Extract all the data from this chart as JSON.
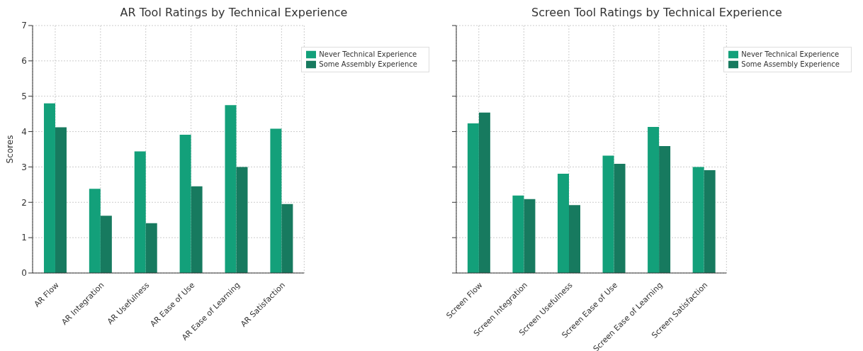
{
  "chart_data": [
    {
      "type": "bar",
      "title": "AR Tool Ratings by Technical Experience",
      "ylabel": "Scores",
      "categories": [
        "AR Flow",
        "AR Integration",
        "AR Usefulness",
        "AR Ease of Use",
        "AR Ease of Learning",
        "AR Satisfaction"
      ],
      "series": [
        {
          "name": "Never Technical Experience",
          "color": "#13a07a",
          "values": [
            4.8,
            2.38,
            3.44,
            3.91,
            4.75,
            4.08
          ]
        },
        {
          "name": "Some Assembly Experience",
          "color": "#177a5f",
          "values": [
            4.12,
            1.62,
            1.41,
            2.45,
            3.0,
            1.95
          ]
        }
      ],
      "ylim": [
        0,
        7
      ],
      "yticks": [
        0,
        1,
        2,
        3,
        4,
        5,
        6,
        7
      ],
      "grid": true,
      "legend": "top right"
    },
    {
      "type": "bar",
      "title": "Screen Tool Ratings by Technical Experience",
      "categories": [
        "Screen Flow",
        "Screen Integration",
        "Screen Usefulness",
        "Screen Ease of Use",
        "Screen Ease of Learning",
        "Screen Satisfaction"
      ],
      "series": [
        {
          "name": "Never Technical Experience",
          "color": "#13a07a",
          "values": [
            4.23,
            2.19,
            2.81,
            3.32,
            4.13,
            3.0
          ]
        },
        {
          "name": "Some Assembly Experience",
          "color": "#177a5f",
          "values": [
            4.54,
            2.09,
            1.92,
            3.09,
            3.59,
            2.91
          ]
        }
      ],
      "ylim": [
        0,
        7
      ],
      "yticks": [
        0,
        1,
        2,
        3,
        4,
        5,
        6,
        7
      ],
      "grid": true,
      "legend": "top right",
      "tick_labels": "x"
    }
  ]
}
